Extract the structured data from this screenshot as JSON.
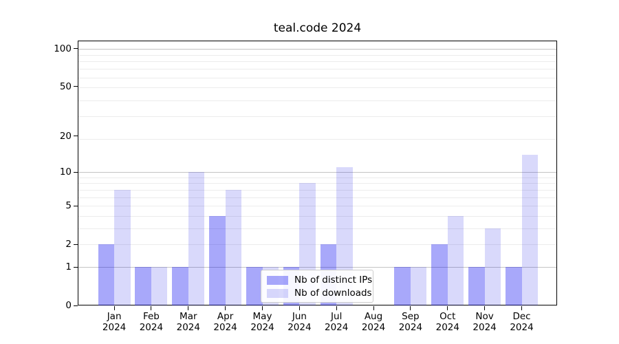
{
  "chart_data": {
    "type": "bar",
    "title": "teal.code 2024",
    "categories": [
      "Jan",
      "Feb",
      "Mar",
      "Apr",
      "May",
      "Jun",
      "Jul",
      "Aug",
      "Sep",
      "Oct",
      "Nov",
      "Dec"
    ],
    "year_label": "2024",
    "series": [
      {
        "name": "Nb of distinct IPs",
        "color": "rgba(0,0,240,0.34)",
        "values": [
          2,
          1,
          1,
          4,
          1,
          1,
          2,
          0,
          1,
          2,
          1,
          1
        ]
      },
      {
        "name": "Nb of downloads",
        "color": "rgba(0,0,230,0.15)",
        "values": [
          7,
          1,
          10,
          7,
          1,
          8,
          11,
          0,
          1,
          4,
          3,
          14
        ]
      }
    ],
    "xlabel": "",
    "ylabel": "",
    "yscale": "log1p",
    "ylim": [
      0,
      115
    ],
    "yticks": [
      0,
      1,
      2,
      5,
      10,
      20,
      50,
      100
    ],
    "grid_major_values": [
      1,
      10,
      100
    ],
    "grid_minor_values_plus1": [
      3,
      4,
      5,
      6,
      7,
      8,
      9,
      10,
      20,
      30,
      40,
      50,
      60,
      70,
      80,
      90,
      100
    ],
    "grid": "on",
    "legend_position": "lower center"
  },
  "legend": {
    "items": [
      {
        "label": "Nb of distinct IPs",
        "color": "rgba(0,0,240,0.34)"
      },
      {
        "label": "Nb of downloads",
        "color": "rgba(0,0,230,0.15)"
      }
    ]
  },
  "colors": {
    "background": "#ffffff",
    "spine": "#000000",
    "grid_major": "#c3c3c3",
    "grid_minor": "#ececec",
    "bar_distinct_ips": "rgba(0,0,240,0.34)",
    "bar_downloads": "rgba(0,0,230,0.15)"
  }
}
